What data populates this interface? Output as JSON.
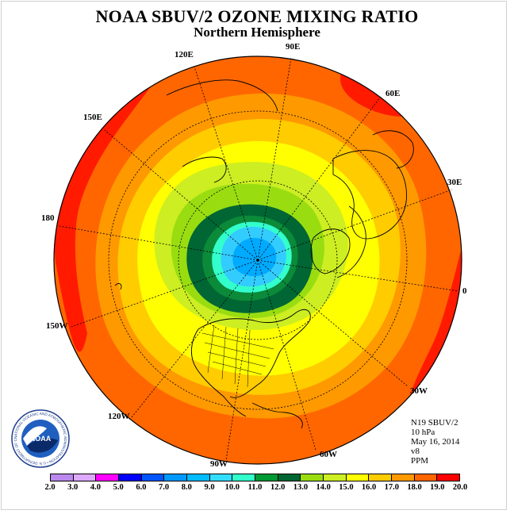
{
  "header": {
    "title": "NOAA SBUV/2 OZONE MIXING RATIO",
    "subtitle": "Northern Hemisphere"
  },
  "map": {
    "projection": "polar stereographic, north pole",
    "longitude_labels": [
      "90E",
      "60E",
      "30E",
      "0",
      "30W",
      "60W",
      "90W",
      "120W",
      "150W",
      "180",
      "150E",
      "120E"
    ],
    "field_levels_outer_to_inner": [
      {
        "range": "18.0-19.0",
        "color": "#ff1a00"
      },
      {
        "range": "17.0-18.0",
        "color": "#ff6600"
      },
      {
        "range": "16.0-17.0",
        "color": "#ff9900"
      },
      {
        "range": "15.0-16.0",
        "color": "#ffcc00"
      },
      {
        "range": "14.0-15.0",
        "color": "#ffff00"
      },
      {
        "range": "13.0-14.0",
        "color": "#ccee22"
      },
      {
        "range": "12.0-13.0",
        "color": "#99dd11"
      },
      {
        "range": "11.0-12.0",
        "color": "#006633"
      },
      {
        "range": "10.0-11.0",
        "color": "#0b8a3a"
      },
      {
        "range": "9.0-10.0",
        "color": "#33ffcc"
      },
      {
        "range": "8.0-9.0",
        "color": "#33ccff"
      },
      {
        "range": "7.0-8.0",
        "color": "#00aaff"
      }
    ]
  },
  "info": {
    "satellite": "N19 SBUV/2",
    "level": "10 hPa",
    "date": "May 16, 2014",
    "version": "v8",
    "units": "PPM"
  },
  "colorbar": {
    "ticks": [
      "2.0",
      "3.0",
      "4.0",
      "5.0",
      "6.0",
      "7.0",
      "8.0",
      "9.0",
      "10.0",
      "11.0",
      "12.0",
      "13.0",
      "14.0",
      "15.0",
      "16.0",
      "17.0",
      "18.0",
      "19.0",
      "20.0"
    ],
    "colors": [
      "#bb88ee",
      "#ddaaff",
      "#ff00ff",
      "#0000ff",
      "#0055ff",
      "#0099ff",
      "#00bbff",
      "#33ddff",
      "#33ffcc",
      "#009933",
      "#006633",
      "#99dd11",
      "#ccee22",
      "#ffff00",
      "#ffcc00",
      "#ff9900",
      "#ff6600",
      "#ff0000",
      "#8b5a2b"
    ]
  },
  "logo": {
    "text": "NOAA",
    "ring_text": "NATIONAL OCEANIC AND ATMOSPHERIC ADMINISTRATION • U.S. DEPARTMENT OF COMMERCE"
  }
}
